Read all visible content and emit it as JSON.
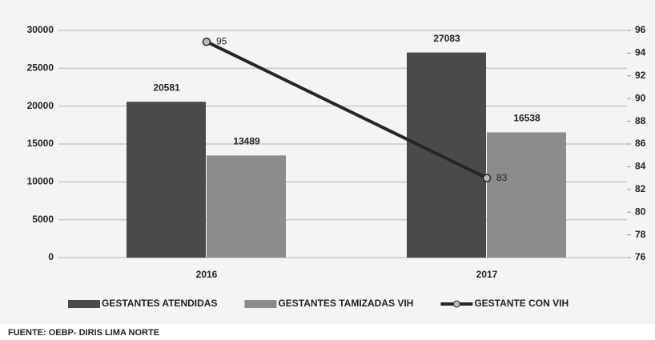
{
  "chart_data": {
    "type": "bar_line",
    "categories": [
      "2016",
      "2017"
    ],
    "series": [
      {
        "name": "GESTANTES ATENDIDAS",
        "color": "#4a4a4a",
        "values": [
          20581,
          27083
        ]
      },
      {
        "name": "GESTANTES TAMIZADAS VIH",
        "color": "#8c8c8c",
        "values": [
          13489,
          16538
        ]
      },
      {
        "name": "GESTANTE CON VIH",
        "color": "#262626",
        "axis": "y2",
        "values": [
          95,
          83
        ]
      }
    ],
    "ylim": [
      0,
      30000
    ],
    "yticks": [
      0,
      5000,
      10000,
      15000,
      20000,
      25000,
      30000
    ],
    "y2lim": [
      76,
      96
    ],
    "y2ticks": [
      76,
      78,
      80,
      82,
      84,
      86,
      88,
      90,
      92,
      94,
      96
    ],
    "grid": true,
    "legend": "bottom",
    "source": "FUENTE: OEBP- DIRIS LIMA NORTE"
  }
}
